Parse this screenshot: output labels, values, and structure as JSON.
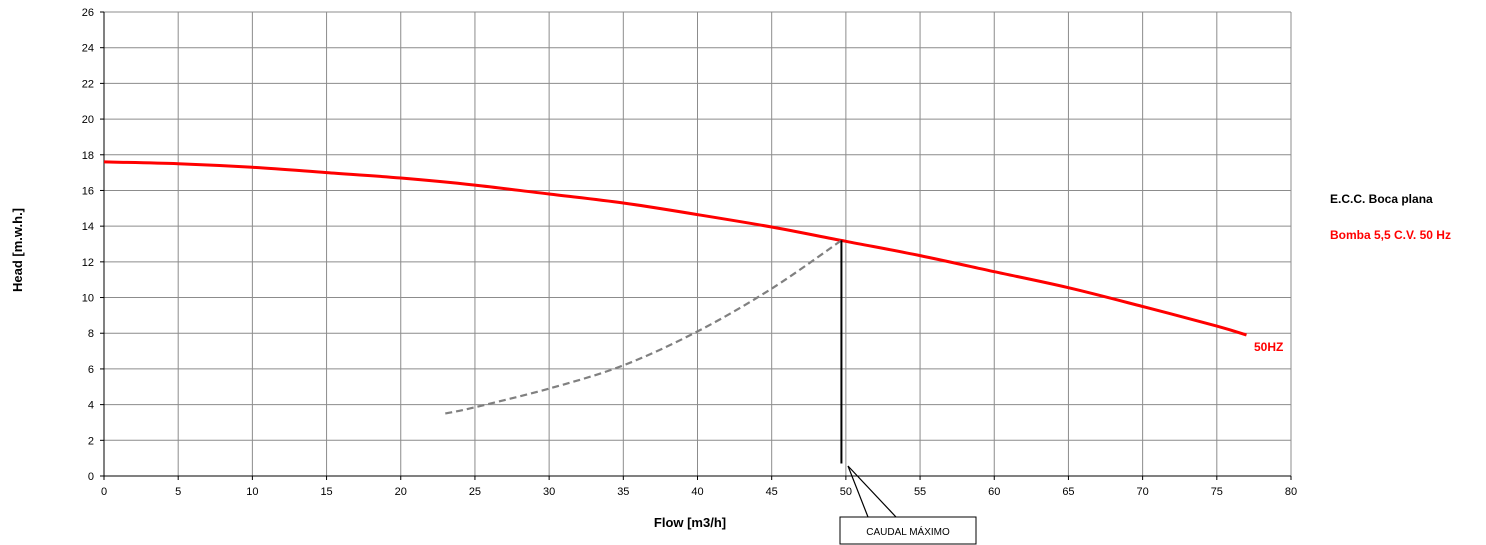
{
  "chart_data": {
    "type": "line",
    "title": "",
    "xlabel": "Flow [m3/h]",
    "ylabel": "Head [m.w.h.]",
    "xlim": [
      0,
      80
    ],
    "ylim": [
      0,
      26
    ],
    "xticks": [
      0,
      5,
      10,
      15,
      20,
      25,
      30,
      35,
      40,
      45,
      50,
      55,
      60,
      65,
      70,
      75,
      80
    ],
    "yticks": [
      0,
      2,
      4,
      6,
      8,
      10,
      12,
      14,
      16,
      18,
      20,
      22,
      24,
      26
    ],
    "grid": true,
    "series": [
      {
        "name": "50HZ",
        "color": "#ff0000",
        "style": "solid",
        "x": [
          0,
          5,
          10,
          15,
          20,
          25,
          30,
          35,
          40,
          45,
          50,
          55,
          60,
          65,
          70,
          75,
          77
        ],
        "y": [
          17.6,
          17.5,
          17.3,
          17.0,
          16.7,
          16.3,
          15.8,
          15.3,
          14.65,
          13.95,
          13.15,
          12.35,
          11.45,
          10.55,
          9.5,
          8.4,
          7.9
        ]
      },
      {
        "name": "",
        "color": "#808080",
        "style": "dashed",
        "x": [
          23,
          25,
          30,
          35,
          40,
          45,
          49.7
        ],
        "y": [
          3.5,
          3.85,
          4.9,
          6.2,
          8.1,
          10.5,
          13.2
        ]
      }
    ],
    "annotations": [
      {
        "type": "vline",
        "x": 49.7,
        "y_from": 0.7,
        "y_to": 13.2,
        "color": "#000000"
      },
      {
        "type": "callout",
        "text": "CAUDAL MÁXIMO",
        "points_to_x": 50,
        "points_to_y": 0.6
      }
    ],
    "legend": {
      "placement": "right",
      "title": "E.C.C. Boca plana",
      "subtitle": "Bomba 5,5 C.V. 50 Hz"
    },
    "curve_label": "50HZ"
  }
}
